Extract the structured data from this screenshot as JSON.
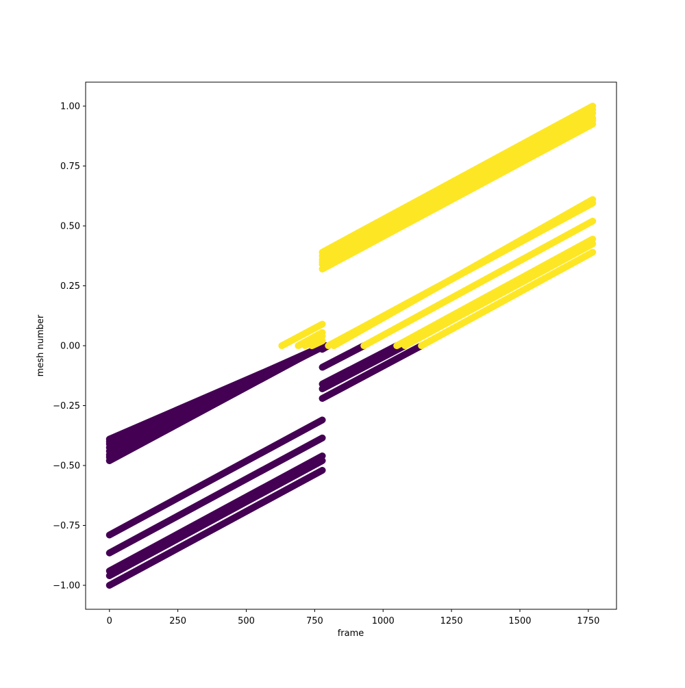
{
  "chart_data": {
    "type": "scatter",
    "xlabel": "frame",
    "ylabel": "mesh number",
    "xlim": [
      -87,
      1853
    ],
    "ylim": [
      -1.1,
      1.1
    ],
    "x_ticks": [
      0,
      250,
      500,
      750,
      1000,
      1250,
      1500,
      1750
    ],
    "x_tick_labels": [
      "0",
      "250",
      "500",
      "750",
      "1000",
      "1250",
      "1500",
      "1750"
    ],
    "y_ticks": [
      -1.0,
      -0.75,
      -0.5,
      -0.25,
      0.0,
      0.25,
      0.5,
      0.75,
      1.0
    ],
    "y_tick_labels": [
      "−1.00",
      "−0.75",
      "−0.50",
      "−0.25",
      "0.00",
      "0.25",
      "0.50",
      "0.75",
      "1.00"
    ],
    "grid": false,
    "legend": "none",
    "colors": {
      "negative": "#440154",
      "positive": "#fde725"
    },
    "series": [
      {
        "color": "negative",
        "x": [
          0,
          782
        ],
        "y": [
          -0.48,
          -0.0
        ]
      },
      {
        "color": "negative",
        "x": [
          0,
          790
        ],
        "y": [
          -0.39,
          -0.0
        ]
      },
      {
        "color": "negative",
        "x": [
          0,
          788
        ],
        "y": [
          -0.44,
          -0.0
        ]
      },
      {
        "color": "negative",
        "x": [
          0,
          785
        ],
        "y": [
          -0.41,
          -0.0
        ]
      },
      {
        "color": "negative",
        "x": [
          0,
          780
        ],
        "y": [
          -0.465,
          -0.0
        ]
      },
      {
        "color": "negative",
        "x": [
          0,
          785
        ],
        "y": [
          -0.425,
          -0.0
        ]
      },
      {
        "color": "negative",
        "x": [
          0,
          787
        ],
        "y": [
          -0.455,
          -0.0
        ]
      },
      {
        "color": "negative",
        "x": [
          0,
          783
        ],
        "y": [
          -0.4,
          -0.0
        ]
      },
      {
        "color": "negative",
        "x": [
          0,
          778
        ],
        "y": [
          -0.79,
          -0.31
        ]
      },
      {
        "color": "negative",
        "x": [
          0,
          778
        ],
        "y": [
          -0.865,
          -0.385
        ]
      },
      {
        "color": "negative",
        "x": [
          0,
          778
        ],
        "y": [
          -0.94,
          -0.46
        ]
      },
      {
        "color": "negative",
        "x": [
          0,
          778
        ],
        "y": [
          -0.96,
          -0.48
        ]
      },
      {
        "color": "negative",
        "x": [
          0,
          778
        ],
        "y": [
          -1.0,
          -0.52
        ]
      },
      {
        "color": "negative",
        "x": [
          778,
          930
        ],
        "y": [
          -0.09,
          0.0
        ]
      },
      {
        "color": "negative",
        "x": [
          778,
          1050
        ],
        "y": [
          -0.16,
          0.0
        ]
      },
      {
        "color": "negative",
        "x": [
          778,
          1080
        ],
        "y": [
          -0.18,
          0.0
        ]
      },
      {
        "color": "negative",
        "x": [
          778,
          1140
        ],
        "y": [
          -0.22,
          0.0
        ]
      },
      {
        "color": "negative",
        "x": [
          778,
          800
        ],
        "y": [
          -0.015,
          0.0
        ]
      },
      {
        "color": "positive",
        "x": [
          630,
          778
        ],
        "y": [
          0.0,
          0.09
        ]
      },
      {
        "color": "positive",
        "x": [
          690,
          778
        ],
        "y": [
          0.0,
          0.055
        ]
      },
      {
        "color": "positive",
        "x": [
          740,
          778
        ],
        "y": [
          0.0,
          0.02
        ]
      },
      {
        "color": "positive",
        "x": [
          715,
          778
        ],
        "y": [
          0.0,
          0.04
        ]
      },
      {
        "color": "positive",
        "x": [
          778,
          1766
        ],
        "y": [
          0.32,
          0.925
        ]
      },
      {
        "color": "positive",
        "x": [
          778,
          1766
        ],
        "y": [
          0.39,
          1.0
        ]
      },
      {
        "color": "positive",
        "x": [
          778,
          1766
        ],
        "y": [
          0.34,
          0.95
        ]
      },
      {
        "color": "positive",
        "x": [
          778,
          1766
        ],
        "y": [
          0.36,
          0.97
        ]
      },
      {
        "color": "positive",
        "x": [
          778,
          1766
        ],
        "y": [
          0.375,
          0.985
        ]
      },
      {
        "color": "positive",
        "x": [
          778,
          1766
        ],
        "y": [
          0.35,
          0.94
        ]
      },
      {
        "color": "positive",
        "x": [
          800,
          1766
        ],
        "y": [
          0.0,
          0.595
        ]
      },
      {
        "color": "positive",
        "x": [
          820,
          1766
        ],
        "y": [
          0.0,
          0.61
        ]
      },
      {
        "color": "positive",
        "x": [
          930,
          1766
        ],
        "y": [
          0.0,
          0.52
        ]
      },
      {
        "color": "positive",
        "x": [
          1050,
          1766
        ],
        "y": [
          0.0,
          0.445
        ]
      },
      {
        "color": "positive",
        "x": [
          1080,
          1766
        ],
        "y": [
          0.0,
          0.425
        ]
      },
      {
        "color": "positive",
        "x": [
          1140,
          1766
        ],
        "y": [
          0.0,
          0.39
        ]
      }
    ]
  }
}
